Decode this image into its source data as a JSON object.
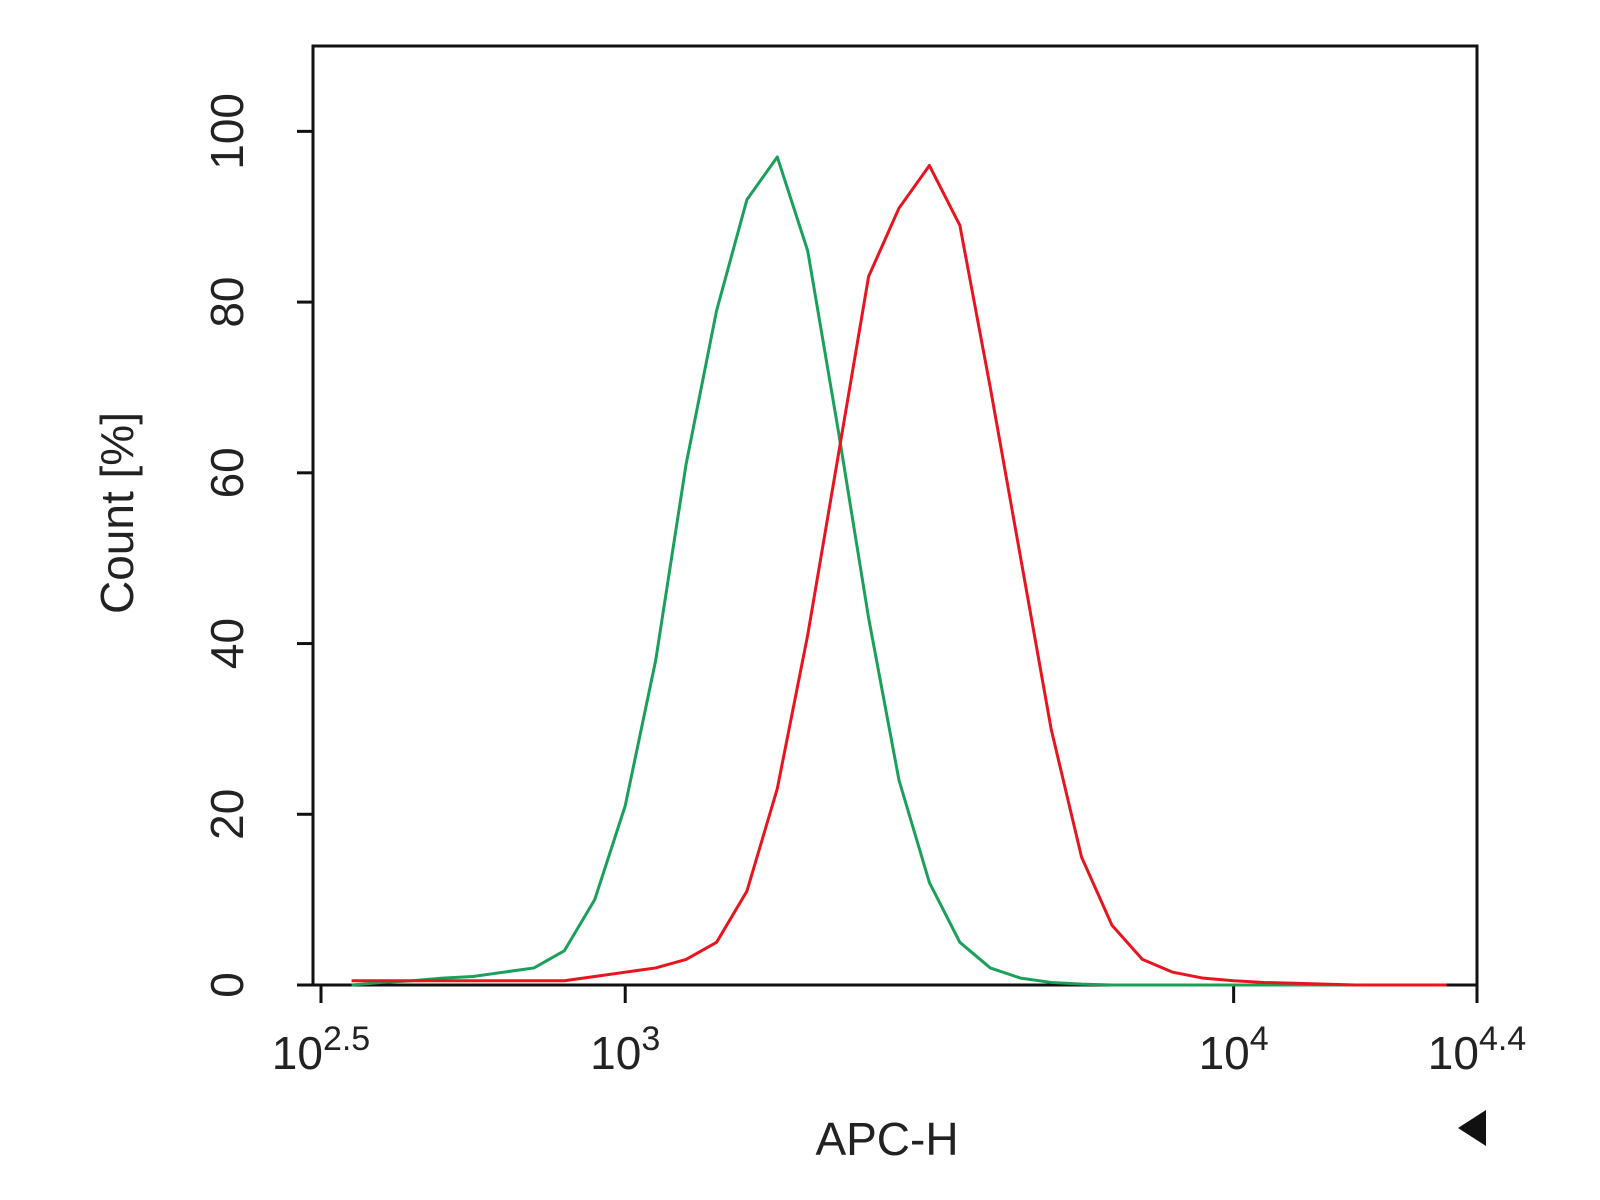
{
  "chart_data": {
    "type": "line",
    "x_label": "APC-H",
    "y_label": "Count [%]",
    "x_log": true,
    "xlim": [
      316.2,
      25118.9
    ],
    "ylim": [
      0,
      110
    ],
    "xticks": [
      {
        "value": 316.2,
        "label": "10",
        "exponent": "2.5"
      },
      {
        "value": 1000,
        "label": "10",
        "exponent": "3"
      },
      {
        "value": 10000,
        "label": "10",
        "exponent": "4"
      },
      {
        "value": 25118.9,
        "label": "10",
        "exponent": "4.4"
      }
    ],
    "yticks": [
      0,
      20,
      40,
      60,
      80,
      100
    ],
    "x": [
      355,
      398,
      447,
      501,
      562,
      631,
      708,
      794,
      891,
      1000,
      1122,
      1259,
      1413,
      1585,
      1778,
      1995,
      2239,
      2512,
      2818,
      3162,
      3548,
      3981,
      4467,
      5012,
      5623,
      6310,
      7079,
      7943,
      8913,
      10000,
      11220,
      12589,
      14125,
      15849,
      17783,
      19953,
      22387
    ],
    "series": [
      {
        "color": "#1aa05a",
        "values": [
          0,
          0.3,
          0.5,
          0.8,
          1,
          1.5,
          2,
          4,
          10,
          21,
          38,
          61,
          79,
          92,
          97,
          86,
          65,
          43,
          24,
          12,
          5,
          2,
          0.8,
          0.3,
          0.1,
          0,
          0,
          0,
          0,
          0,
          0,
          0,
          0,
          0,
          0,
          0,
          0
        ]
      },
      {
        "color": "#e8141e",
        "values": [
          0.5,
          0.5,
          0.5,
          0.5,
          0.5,
          0.5,
          0.5,
          0.5,
          1,
          1.5,
          2,
          3,
          5,
          11,
          23,
          41,
          62,
          83,
          91,
          96,
          89,
          70,
          50,
          30,
          15,
          7,
          3,
          1.5,
          0.8,
          0.5,
          0.3,
          0.2,
          0.1,
          0,
          0,
          0,
          0
        ]
      }
    ]
  }
}
